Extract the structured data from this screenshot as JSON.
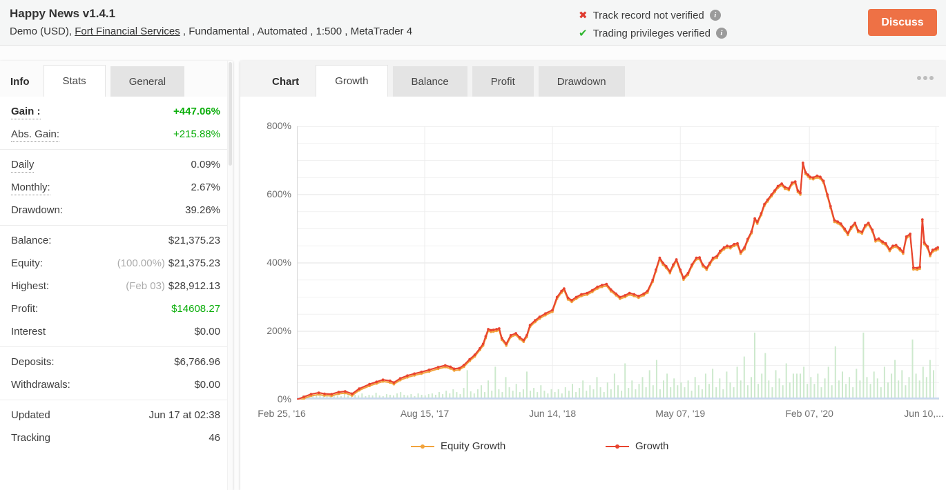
{
  "colors": {
    "accent_orange": "#EE7145",
    "growth_red": "#E8442F",
    "equity_orange": "#F2A33C",
    "positive_green": "#0BAE0B",
    "bar_green": "#CDE9CD",
    "verify_red": "#DF3A2F",
    "verify_green": "#2DB52D"
  },
  "header": {
    "title": "Happy News v1.4.1",
    "subtitle_prefix": "Demo (USD), ",
    "broker_link": "Fort Financial Services",
    "subtitle_suffix": " , Fundamental , Automated , 1:500 , MetaTrader 4",
    "track_record_label": "Track record not verified",
    "privileges_label": "Trading privileges verified",
    "discuss_label": "Discuss"
  },
  "sidebar": {
    "tabs": [
      {
        "label": "Info",
        "style": "label"
      },
      {
        "label": "Stats",
        "style": "selected"
      },
      {
        "label": "General",
        "style": "normal"
      }
    ],
    "groups": [
      {
        "rows": [
          {
            "label": "Gain :",
            "value": "+447.06%",
            "label_class": "bold dotted",
            "value_class": "pos bold"
          },
          {
            "label": "Abs. Gain:",
            "value": "+215.88%",
            "label_class": "dotted",
            "value_class": "pos"
          }
        ]
      },
      {
        "rows": [
          {
            "label": "Daily",
            "value": "0.09%",
            "label_class": "dotted"
          },
          {
            "label": "Monthly:",
            "value": "2.67%",
            "label_class": "dotted"
          },
          {
            "label": "Drawdown:",
            "value": "39.26%"
          }
        ]
      },
      {
        "rows": [
          {
            "label": "Balance:",
            "value": "$21,375.23"
          },
          {
            "label": "Equity:",
            "pre": "(100.00%)",
            "value": "$21,375.23"
          },
          {
            "label": "Highest:",
            "pre": "(Feb 03)",
            "value": "$28,912.13"
          },
          {
            "label": "Profit:",
            "value": "$14608.27",
            "value_class": "pos"
          },
          {
            "label": "Interest",
            "value": "$0.00"
          }
        ]
      },
      {
        "rows": [
          {
            "label": "Deposits:",
            "value": "$6,766.96"
          },
          {
            "label": "Withdrawals:",
            "value": "$0.00"
          }
        ]
      },
      {
        "rows": [
          {
            "label": "Updated",
            "value": "Jun 17 at 02:38"
          },
          {
            "label": "Tracking",
            "value": "46"
          }
        ]
      }
    ]
  },
  "chart_panel": {
    "tabs": [
      {
        "label": "Chart",
        "style": "label"
      },
      {
        "label": "Growth",
        "style": "selected"
      },
      {
        "label": "Balance",
        "style": "normal"
      },
      {
        "label": "Profit",
        "style": "normal"
      },
      {
        "label": "Drawdown",
        "style": "normal"
      }
    ],
    "menu_icon": "ellipsis-icon"
  },
  "chart_data": {
    "type": "line",
    "ylim": [
      0,
      800
    ],
    "y_ticks": [
      0,
      200,
      400,
      600,
      800
    ],
    "y_minor_step": 50,
    "y_tick_suffix": "%",
    "grid": true,
    "legend_position": "bottom",
    "x_ticks": [
      {
        "label": "Feb 25, '16",
        "pos": 0
      },
      {
        "label": "Aug 15, '17",
        "pos": 19.9
      },
      {
        "label": "Jun 14, '18",
        "pos": 39.8
      },
      {
        "label": "May 07, '19",
        "pos": 59.7
      },
      {
        "label": "Feb 07, '20",
        "pos": 79.8
      },
      {
        "label": "Jun 10,...",
        "pos": 99.5
      }
    ],
    "series": [
      {
        "name": "Equity Growth",
        "color": "#F2A33C",
        "derived_from": "Growth",
        "y_offset": -5
      },
      {
        "name": "Growth",
        "color": "#E8442F",
        "points": [
          [
            0,
            0
          ],
          [
            1.1,
            8
          ],
          [
            2.2,
            16
          ],
          [
            3.4,
            20
          ],
          [
            4.3,
            17
          ],
          [
            5.4,
            16
          ],
          [
            6.5,
            22
          ],
          [
            7.5,
            24
          ],
          [
            8.6,
            17
          ],
          [
            9.7,
            32
          ],
          [
            11.3,
            45
          ],
          [
            12.4,
            52
          ],
          [
            13.4,
            58
          ],
          [
            14.5,
            55
          ],
          [
            15.1,
            50
          ],
          [
            16.1,
            62
          ],
          [
            17.2,
            70
          ],
          [
            18.3,
            76
          ],
          [
            19.4,
            81
          ],
          [
            20.6,
            87
          ],
          [
            22,
            95
          ],
          [
            23.1,
            100
          ],
          [
            23.9,
            96
          ],
          [
            24.5,
            90
          ],
          [
            25.3,
            92
          ],
          [
            26,
            101
          ],
          [
            26.9,
            118
          ],
          [
            27.7,
            131
          ],
          [
            28.5,
            150
          ],
          [
            29,
            163
          ],
          [
            29.4,
            185
          ],
          [
            29.8,
            206
          ],
          [
            30.2,
            203
          ],
          [
            30.6,
            204
          ],
          [
            31.1,
            206
          ],
          [
            31.5,
            208
          ],
          [
            31.9,
            180
          ],
          [
            32.6,
            163
          ],
          [
            33.3,
            188
          ],
          [
            34.1,
            194
          ],
          [
            34.7,
            182
          ],
          [
            35.3,
            174
          ],
          [
            35.8,
            188
          ],
          [
            36.3,
            218
          ],
          [
            37.1,
            232
          ],
          [
            37.8,
            242
          ],
          [
            38.7,
            252
          ],
          [
            39.8,
            262
          ],
          [
            40.5,
            300
          ],
          [
            41.2,
            318
          ],
          [
            41.6,
            325
          ],
          [
            42.2,
            298
          ],
          [
            42.8,
            291
          ],
          [
            43.5,
            300
          ],
          [
            44.3,
            308
          ],
          [
            45.2,
            312
          ],
          [
            46,
            320
          ],
          [
            46.8,
            330
          ],
          [
            47.5,
            335
          ],
          [
            48.2,
            338
          ],
          [
            48.9,
            322
          ],
          [
            49.7,
            310
          ],
          [
            50.3,
            300
          ],
          [
            51.1,
            305
          ],
          [
            51.8,
            312
          ],
          [
            52.5,
            308
          ],
          [
            53.2,
            303
          ],
          [
            54,
            310
          ],
          [
            54.6,
            318
          ],
          [
            55.4,
            350
          ],
          [
            55.9,
            380
          ],
          [
            56.5,
            415
          ],
          [
            57,
            400
          ],
          [
            57.5,
            390
          ],
          [
            58.1,
            375
          ],
          [
            58.6,
            395
          ],
          [
            59.1,
            410
          ],
          [
            59.7,
            380
          ],
          [
            60.2,
            356
          ],
          [
            60.9,
            370
          ],
          [
            61.5,
            395
          ],
          [
            62.2,
            415
          ],
          [
            62.7,
            416
          ],
          [
            63.2,
            395
          ],
          [
            63.8,
            385
          ],
          [
            64.3,
            400
          ],
          [
            64.8,
            415
          ],
          [
            65.4,
            420
          ],
          [
            65.9,
            435
          ],
          [
            66.5,
            445
          ],
          [
            67,
            450
          ],
          [
            67.5,
            448
          ],
          [
            68.1,
            455
          ],
          [
            68.6,
            457
          ],
          [
            69.1,
            432
          ],
          [
            69.7,
            445
          ],
          [
            70.2,
            470
          ],
          [
            70.8,
            492
          ],
          [
            71.3,
            530
          ],
          [
            71.7,
            520
          ],
          [
            72.3,
            545
          ],
          [
            72.8,
            572
          ],
          [
            73.3,
            585
          ],
          [
            73.9,
            600
          ],
          [
            74.4,
            612
          ],
          [
            74.9,
            625
          ],
          [
            75.5,
            632
          ],
          [
            76,
            622
          ],
          [
            76.6,
            618
          ],
          [
            77.1,
            635
          ],
          [
            77.6,
            638
          ],
          [
            78,
            612
          ],
          [
            78.4,
            605
          ],
          [
            78.8,
            693
          ],
          [
            79.2,
            665
          ],
          [
            79.6,
            658
          ],
          [
            79.9,
            652
          ],
          [
            80.4,
            650
          ],
          [
            81,
            655
          ],
          [
            81.5,
            652
          ],
          [
            82,
            640
          ],
          [
            82.6,
            600
          ],
          [
            83.1,
            566
          ],
          [
            83.7,
            525
          ],
          [
            84.2,
            521
          ],
          [
            84.7,
            515
          ],
          [
            85.3,
            500
          ],
          [
            85.8,
            487
          ],
          [
            86.3,
            505
          ],
          [
            86.9,
            517
          ],
          [
            87.4,
            495
          ],
          [
            88,
            491
          ],
          [
            88.5,
            510
          ],
          [
            89,
            517
          ],
          [
            89.6,
            497
          ],
          [
            90.1,
            468
          ],
          [
            90.6,
            471
          ],
          [
            91.2,
            462
          ],
          [
            91.7,
            457
          ],
          [
            92.3,
            440
          ],
          [
            92.8,
            450
          ],
          [
            93.3,
            452
          ],
          [
            93.9,
            442
          ],
          [
            94.4,
            432
          ],
          [
            94.9,
            477
          ],
          [
            95.5,
            485
          ],
          [
            96,
            386
          ],
          [
            96.6,
            385
          ],
          [
            97,
            388
          ],
          [
            97.4,
            527
          ],
          [
            97.7,
            460
          ],
          [
            98.2,
            448
          ],
          [
            98.6,
            425
          ],
          [
            99,
            438
          ],
          [
            99.5,
            442
          ],
          [
            99.8,
            445
          ]
        ]
      }
    ],
    "bars": {
      "name": "activity",
      "color": "#CDE9CD",
      "values": [
        6,
        4,
        8,
        4,
        6,
        10,
        4,
        6,
        8,
        12,
        6,
        4,
        10,
        6,
        16,
        8,
        6,
        12,
        4,
        8,
        6,
        14,
        6,
        4,
        10,
        8,
        6,
        12,
        16,
        8,
        6,
        10,
        4,
        12,
        8,
        6,
        10,
        12,
        8,
        16,
        10,
        20,
        12,
        24,
        16,
        10,
        28,
        80,
        18,
        12,
        24,
        36,
        16,
        50,
        20,
        90,
        24,
        16,
        60,
        30,
        20,
        40,
        16,
        24,
        76,
        20,
        28,
        16,
        36,
        20,
        12,
        24,
        16,
        24,
        12,
        30,
        20,
        40,
        16,
        28,
        50,
        20,
        36,
        24,
        60,
        30,
        16,
        44,
        24,
        70,
        36,
        20,
        100,
        28,
        50,
        24,
        40,
        60,
        30,
        80,
        36,
        110,
        24,
        50,
        70,
        30,
        56,
        36,
        44,
        30,
        50,
        20,
        60,
        36,
        24,
        70,
        40,
        84,
        30,
        56,
        24,
        76,
        44,
        30,
        90,
        50,
        120,
        36,
        60,
        190,
        40,
        70,
        130,
        50,
        30,
        80,
        56,
        36,
        100,
        44,
        70,
        70,
        70,
        90,
        40,
        60,
        40,
        70,
        30,
        56,
        90,
        36,
        150,
        50,
        76,
        40,
        60,
        30,
        84,
        50,
        190,
        60,
        40,
        76,
        56,
        30,
        90,
        44,
        70,
        110,
        50,
        80,
        36,
        60,
        170,
        70,
        50,
        90,
        60,
        110,
        80
      ]
    }
  }
}
